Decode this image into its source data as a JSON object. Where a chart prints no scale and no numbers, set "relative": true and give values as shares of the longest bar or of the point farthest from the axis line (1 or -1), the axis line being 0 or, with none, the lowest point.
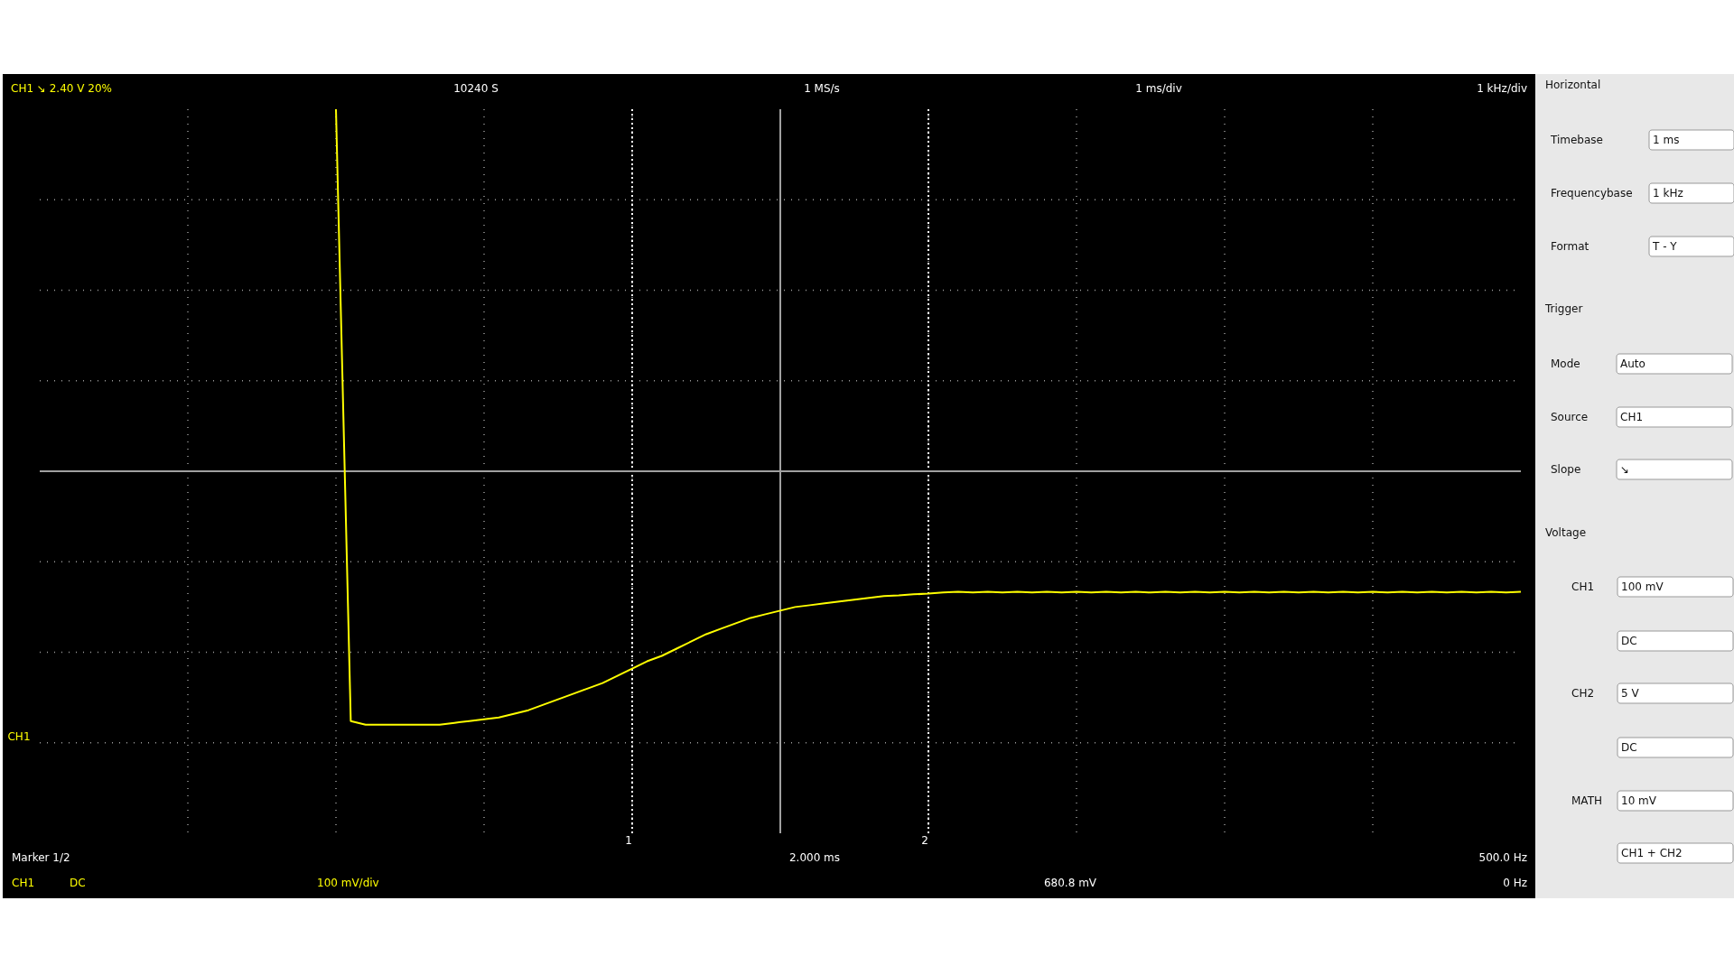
{
  "chart_data": {
    "type": "line",
    "relative": true,
    "grid": true,
    "categories": [
      null,
      null,
      null,
      null,
      null,
      null,
      null,
      null,
      null,
      null,
      null,
      null,
      null,
      null,
      null,
      null,
      null,
      null,
      null,
      null,
      null,
      null,
      null,
      null,
      null,
      null,
      null,
      null,
      null,
      null,
      null,
      null,
      null,
      null,
      null,
      null,
      null,
      null,
      null,
      null,
      null,
      null,
      null,
      null,
      null,
      null,
      null,
      null,
      null,
      null,
      null,
      null,
      null,
      null,
      null,
      null,
      null,
      null,
      null,
      null,
      null,
      null,
      null,
      null,
      null,
      null,
      null,
      null,
      null,
      null,
      null,
      null,
      null,
      null,
      null,
      null,
      null,
      null,
      null,
      null,
      null,
      null,
      null,
      null,
      null,
      null,
      null,
      null,
      null,
      null,
      null,
      null,
      null,
      null,
      null,
      null,
      null,
      null,
      null,
      null,
      null
    ],
    "series": [
      {
        "color": "#ffff00",
        "values": [
          null,
          null,
          null,
          null,
          null,
          null,
          null,
          null,
          null,
          null,
          null,
          null,
          null,
          null,
          null,
          null,
          null,
          null,
          null,
          null,
          1.0,
          -0.69,
          -0.7,
          -0.7,
          -0.7,
          -0.7,
          -0.7,
          -0.7,
          -0.695,
          -0.69,
          -0.685,
          -0.68,
          -0.67,
          -0.66,
          -0.645,
          -0.63,
          -0.615,
          -0.6,
          -0.585,
          -0.565,
          -0.545,
          -0.525,
          -0.51,
          -0.49,
          -0.47,
          -0.45,
          -0.435,
          -0.42,
          -0.405,
          -0.395,
          -0.385,
          -0.375,
          -0.37,
          -0.365,
          -0.36,
          -0.355,
          -0.35,
          -0.345,
          -0.343,
          -0.34,
          -0.338,
          -0.335,
          -0.333,
          -0.335,
          -0.333,
          -0.335,
          -0.333,
          -0.335,
          -0.333,
          -0.335,
          -0.333,
          -0.335,
          -0.333,
          -0.335,
          -0.333,
          -0.335,
          -0.333,
          -0.335,
          -0.333,
          -0.335,
          -0.333,
          -0.335,
          -0.333,
          -0.335,
          -0.333,
          -0.335,
          -0.333,
          -0.335,
          -0.333,
          -0.335,
          -0.333,
          -0.335,
          -0.333,
          -0.335,
          -0.333,
          -0.335,
          -0.333,
          -0.335,
          -0.333,
          -0.335,
          -0.333
        ]
      }
    ],
    "annotations": [
      "1",
      "2",
      "CH1 ↘ 2.40 V 20%",
      "10240 S",
      "1 MS/s",
      "1 ms/div",
      "1 kHz/div",
      "CH1",
      "Marker 1/2",
      "2.000 ms",
      "500.0 Hz",
      "CH1",
      "DC",
      "100 mV/div",
      "680.8 mV",
      "0 Hz",
      "Horizontal",
      "Timebase",
      "1 ms",
      "Frequencybase",
      "1 kHz",
      "Format",
      "T - Y",
      "Trigger",
      "Mode",
      "Auto",
      "Source",
      "CH1",
      "Slope",
      "↘",
      "Voltage",
      "CH1",
      "100 mV",
      "DC",
      "CH2",
      "5 V",
      "DC",
      "MATH",
      "10 mV",
      "CH1 + CH2"
    ]
  }
}
